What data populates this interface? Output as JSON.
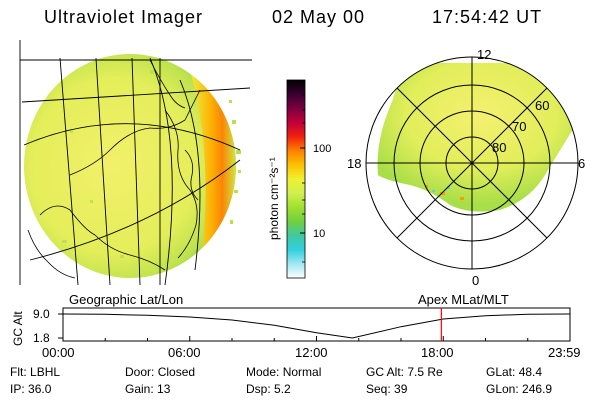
{
  "header": {
    "instrument": "Ultraviolet Imager",
    "date": "02 May 00",
    "time": "17:54:42 UT"
  },
  "colorbar": {
    "unit_label": "photon cm⁻²s⁻¹",
    "tick_labels": [
      "100",
      "10"
    ],
    "stops": [
      "#000000",
      "#3a0030",
      "#7a0040",
      "#c0003a",
      "#f02010",
      "#ff8000",
      "#ffc000",
      "#f0f030",
      "#d0f050",
      "#a0e030",
      "#70d040",
      "#40c8a0",
      "#30d0e0",
      "#a0e8f0",
      "#ffffff"
    ]
  },
  "globe_panel": {
    "label": "Geographic Lat/Lon"
  },
  "polar_panel": {
    "label": "Apex MLat/MLT",
    "mlt_labels": {
      "top": "12",
      "bottom": "0",
      "left": "18",
      "right": "6"
    },
    "lat_labels": [
      "60",
      "70",
      "80"
    ]
  },
  "timeline": {
    "axis_label": "GC Alt",
    "y_ticks": [
      "9.0",
      "1.8"
    ],
    "time_ticks": [
      "00:00",
      "06:00",
      "12:00",
      "18:00",
      "23:59"
    ],
    "altitude_profile": {
      "x_hours": [
        0,
        2,
        4,
        6,
        8,
        10,
        12,
        13.7,
        16,
        18,
        20,
        22,
        23.98
      ],
      "y_re": [
        9.0,
        8.9,
        8.6,
        8.1,
        7.2,
        5.6,
        3.4,
        1.8,
        5.2,
        7.5,
        8.5,
        8.9,
        9.0
      ]
    },
    "current_hour": 17.91,
    "marker_color": "#ff0000"
  },
  "info": {
    "row1": [
      {
        "key": "Flt:",
        "value": "LBHL"
      },
      {
        "key": "Door:",
        "value": "Closed"
      },
      {
        "key": "Mode:",
        "value": "Normal"
      },
      {
        "key": "GC Alt:",
        "value": "7.5 Re"
      },
      {
        "key": "GLat:",
        "value": "48.4"
      }
    ],
    "row2": [
      {
        "key": "IP:",
        "value": "36.0"
      },
      {
        "key": "Gain:",
        "value": "13"
      },
      {
        "key": "Dsp:",
        "value": "5.2"
      },
      {
        "key": "Seq:",
        "value": "39"
      },
      {
        "key": "GLon:",
        "value": "246.9"
      }
    ]
  }
}
